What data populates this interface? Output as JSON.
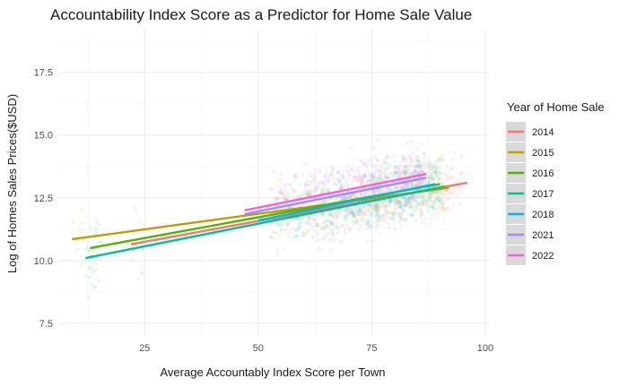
{
  "chart_data": {
    "type": "scatter",
    "title": "Accountability Index Score as a Predictor for Home Sale Value",
    "xlabel": "Average Accountably Index Score per Town",
    "ylabel": "Log of Homes Sales Prices($USD)",
    "xlim": [
      6,
      101
    ],
    "ylim": [
      7.0,
      19.2
    ],
    "xticks": [
      25,
      50,
      75,
      100
    ],
    "yticks": [
      7.5,
      10.0,
      12.5,
      15.0,
      17.5
    ],
    "grid": true,
    "legend": {
      "title": "Year of Home Sale",
      "placement": "right"
    },
    "series": [
      {
        "name": "2014",
        "color": "#F8766D",
        "fit": {
          "x": [
            22,
            96
          ],
          "y": [
            10.65,
            13.1
          ]
        }
      },
      {
        "name": "2015",
        "color": "#C49A00",
        "fit": {
          "x": [
            9,
            92
          ],
          "y": [
            10.85,
            12.9
          ]
        }
      },
      {
        "name": "2016",
        "color": "#53B400",
        "fit": {
          "x": [
            13,
            90
          ],
          "y": [
            10.5,
            13.05
          ]
        }
      },
      {
        "name": "2017",
        "color": "#00C094",
        "fit": {
          "x": [
            12,
            91
          ],
          "y": [
            10.1,
            12.95
          ]
        }
      },
      {
        "name": "2018",
        "color": "#00B6EB",
        "fit": {
          "x": [
            50,
            89
          ],
          "y": [
            11.6,
            13.05
          ]
        }
      },
      {
        "name": "2021",
        "color": "#A58AFF",
        "fit": {
          "x": [
            47,
            87
          ],
          "y": [
            11.85,
            13.3
          ]
        }
      },
      {
        "name": "2022",
        "color": "#FB61D7",
        "fit": {
          "x": [
            47,
            87
          ],
          "y": [
            12.0,
            13.45
          ]
        }
      }
    ]
  }
}
